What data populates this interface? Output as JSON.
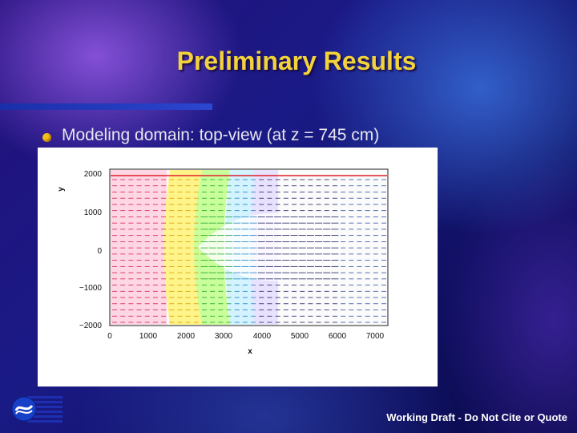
{
  "slide": {
    "title": "Preliminary Results",
    "bullet": "Modeling domain: top-view (at z = 745 cm)",
    "footer": "Working Draft  -  Do Not Cite or Quote",
    "colors": {
      "title": "#f3d33a",
      "bullet": "#f1c21a",
      "footer": "#ffffff"
    },
    "logo_icon": "agency-logo-icon"
  },
  "plot": {
    "xlabel": "x",
    "ylabel": "y",
    "xticks": [
      "0",
      "1000",
      "2000",
      "3000",
      "4000",
      "5000",
      "6000",
      "7000"
    ],
    "yticks": [
      "2000",
      "1000",
      "0",
      "−1000",
      "−2000"
    ]
  }
}
